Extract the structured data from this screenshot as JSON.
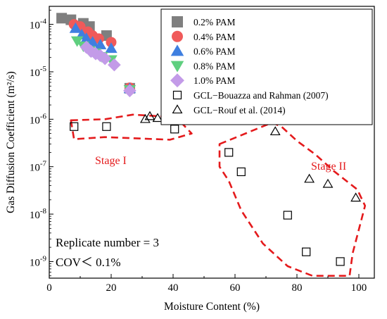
{
  "chart_data": {
    "type": "scatter",
    "xlabel": "Moisture Content (%)",
    "ylabel": "Gas Diffusion Coefficient (m²/s)",
    "xlim": [
      0,
      105
    ],
    "ylim_log10": [
      -9.35,
      -3.62
    ],
    "x_ticks": [
      0,
      20,
      40,
      60,
      80,
      100
    ],
    "y_ticks": [
      {
        "exp": -9,
        "label": "10",
        "sup": "-9"
      },
      {
        "exp": -8,
        "label": "10",
        "sup": "-8"
      },
      {
        "exp": -7,
        "label": "10",
        "sup": "-7"
      },
      {
        "exp": -6,
        "label": "10",
        "sup": "-6"
      },
      {
        "exp": -5,
        "label": "10",
        "sup": "-5"
      },
      {
        "exp": -4,
        "label": "10",
        "sup": "-4"
      }
    ],
    "legend_position": "top-right",
    "series": [
      {
        "name": "0.2% PAM",
        "marker": "square",
        "color": "#7f7f7f",
        "filled": true,
        "points": [
          [
            4,
            0.000135
          ],
          [
            7,
            0.000125
          ],
          [
            11,
            0.000105
          ],
          [
            13,
            9e-05
          ],
          [
            18.5,
            5.8e-05
          ],
          [
            26,
            4.5e-06
          ]
        ]
      },
      {
        "name": "0.4% PAM",
        "marker": "circle",
        "color": "#f05a5a",
        "filled": true,
        "points": [
          [
            8,
            0.0001
          ],
          [
            10,
            9e-05
          ],
          [
            12.5,
            7e-05
          ],
          [
            14,
            5.8e-05
          ],
          [
            16,
            5e-05
          ],
          [
            20,
            4.2e-05
          ],
          [
            26,
            4.6e-06
          ]
        ]
      },
      {
        "name": "0.6% PAM",
        "marker": "triangle-up",
        "color": "#3f7fe0",
        "filled": true,
        "points": [
          [
            8.5,
            8.2e-05
          ],
          [
            10.5,
            6e-05
          ],
          [
            12,
            5e-05
          ],
          [
            14,
            4.2e-05
          ],
          [
            16.5,
            3.7e-05
          ],
          [
            20,
            3.1e-05
          ],
          [
            26,
            4.4e-06
          ]
        ]
      },
      {
        "name": "0.8% PAM",
        "marker": "triangle-down",
        "color": "#5fcf7f",
        "filled": true,
        "points": [
          [
            9,
            4.5e-05
          ],
          [
            11,
            3.5e-05
          ],
          [
            13,
            2.8e-05
          ],
          [
            15,
            2.5e-05
          ],
          [
            17,
            2.1e-05
          ],
          [
            20,
            1.8e-05
          ],
          [
            26,
            4.2e-06
          ]
        ]
      },
      {
        "name": "1.0% PAM",
        "marker": "diamond",
        "color": "#c39be8",
        "filled": true,
        "points": [
          [
            12,
            3.3e-05
          ],
          [
            13.5,
            2.7e-05
          ],
          [
            15,
            2.4e-05
          ],
          [
            16.5,
            2.2e-05
          ],
          [
            18,
            1.9e-05
          ],
          [
            21,
            1.4e-05
          ],
          [
            26,
            4e-06
          ]
        ]
      },
      {
        "name": "GCL−Bouazza and Rahman (2007)",
        "marker": "square",
        "color": "#000000",
        "filled": false,
        "points": [
          [
            8,
            7e-07
          ],
          [
            18.5,
            7e-07
          ],
          [
            40.5,
            6.2e-07
          ],
          [
            58,
            2e-07
          ],
          [
            62,
            7.8e-08
          ],
          [
            77,
            9.5e-09
          ],
          [
            83,
            1.6e-09
          ],
          [
            94,
            1e-09
          ]
        ]
      },
      {
        "name": "GCL−Rouf et al. (2014)",
        "marker": "triangle-up",
        "color": "#000000",
        "filled": false,
        "points": [
          [
            31,
            1e-06
          ],
          [
            32.5,
            1.15e-06
          ],
          [
            35,
            1.05e-06
          ],
          [
            73,
            5.5e-07
          ],
          [
            84,
            5.5e-08
          ],
          [
            90,
            4.3e-08
          ],
          [
            99,
            2.2e-08
          ]
        ]
      }
    ],
    "annotations": {
      "stage1": "Stage I",
      "stage2": "Stage II",
      "replicate": "Replicate number = 3",
      "cov": "COV＜ 0.1%"
    },
    "stage_outline_color": "#e41a1c",
    "stage_regions": {
      "stage1": [
        [
          7,
          9.5e-07
        ],
        [
          18,
          1e-06
        ],
        [
          27,
          1.25e-06
        ],
        [
          41,
          1.1e-06
        ],
        [
          46,
          5e-07
        ],
        [
          39,
          3.7e-07
        ],
        [
          18,
          4.2e-07
        ],
        [
          8,
          3.8e-07
        ]
      ],
      "stage2": [
        [
          55,
          3e-07
        ],
        [
          72,
          8.5e-07
        ],
        [
          75,
          7e-07
        ],
        [
          80,
          3.5e-07
        ],
        [
          86,
          1.8e-07
        ],
        [
          92,
          8e-08
        ],
        [
          99.5,
          3.3e-08
        ],
        [
          102,
          1.5e-08
        ],
        [
          98,
          1.5e-09
        ],
        [
          97,
          5e-10
        ],
        [
          85,
          5e-10
        ],
        [
          77,
          8e-10
        ],
        [
          69,
          2.4e-09
        ],
        [
          62,
          1.2e-08
        ],
        [
          58,
          5e-08
        ],
        [
          55,
          1e-07
        ]
      ]
    }
  }
}
